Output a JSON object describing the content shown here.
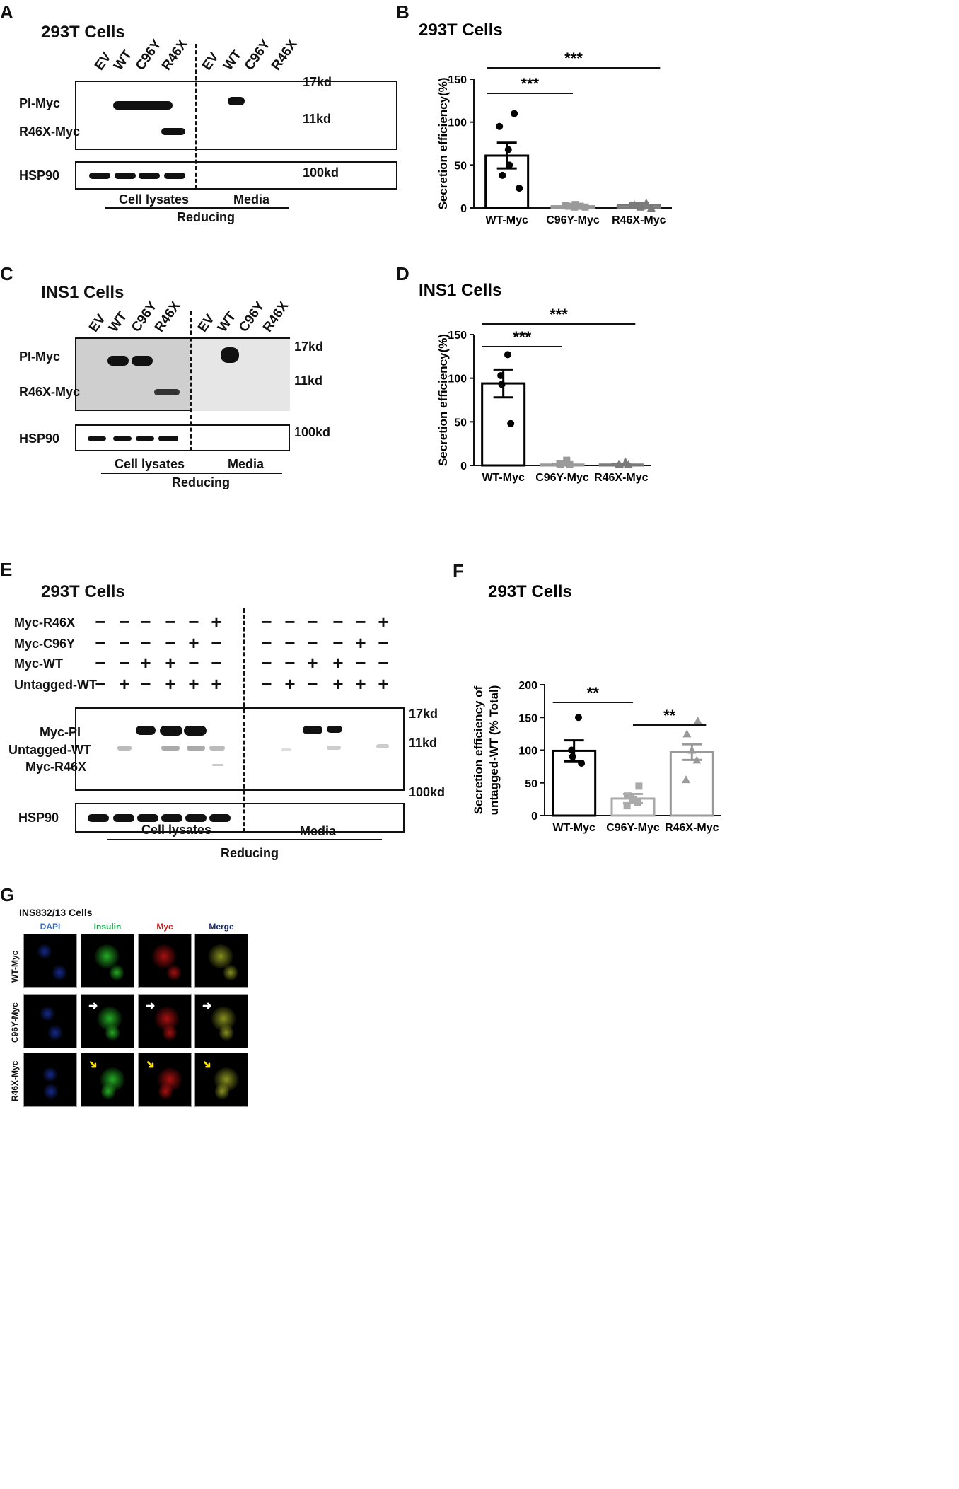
{
  "panels": {
    "A": {
      "letter": "A",
      "title": "293T Cells",
      "lanes": [
        "EV",
        "WT",
        "C96Y",
        "R46X",
        "EV",
        "WT",
        "C96Y",
        "R46X"
      ],
      "rows": [
        "PI-Myc",
        "R46X-Myc",
        "HSP90"
      ],
      "markers": [
        "17kd",
        "11kd",
        "100kd"
      ],
      "groups": [
        "Cell lysates",
        "Media"
      ],
      "condition": "Reducing"
    },
    "B": {
      "letter": "B"
    },
    "C": {
      "letter": "C",
      "title": "INS1 Cells",
      "lanes": [
        "EV",
        "WT",
        "C96Y",
        "R46X",
        "EV",
        "WT",
        "C96Y",
        "R46X"
      ],
      "rows": [
        "PI-Myc",
        "R46X-Myc",
        "HSP90"
      ],
      "markers": [
        "17kd",
        "11kd",
        "100kd"
      ],
      "groups": [
        "Cell lysates",
        "Media"
      ],
      "condition": "Reducing"
    },
    "D": {
      "letter": "D"
    },
    "E": {
      "letter": "E",
      "title": "293T Cells",
      "conditions": [
        {
          "name": "Myc-R46X",
          "signs": [
            "−",
            "−",
            "−",
            "−",
            "−",
            "+",
            "−",
            "−",
            "−",
            "−",
            "−",
            "+"
          ]
        },
        {
          "name": "Myc-C96Y",
          "signs": [
            "−",
            "−",
            "−",
            "−",
            "+",
            "−",
            "−",
            "−",
            "−",
            "−",
            "+",
            "−"
          ]
        },
        {
          "name": "Myc-WT",
          "signs": [
            "−",
            "−",
            "+",
            "+",
            "−",
            "−",
            "−",
            "−",
            "+",
            "+",
            "−",
            "−"
          ]
        },
        {
          "name": "Untagged-WT",
          "signs": [
            "−",
            "+",
            "−",
            "+",
            "+",
            "+",
            "−",
            "+",
            "−",
            "+",
            "+",
            "+"
          ]
        }
      ],
      "rows": [
        "Myc-PI",
        "Untagged-WT",
        "Myc-R46X",
        "HSP90"
      ],
      "markers": [
        "17kd",
        "11kd",
        "100kd"
      ],
      "groups": [
        "Cell lysates",
        "Media"
      ],
      "condition": "Reducing"
    },
    "F": {
      "letter": "F"
    },
    "G": {
      "letter": "G",
      "title": "INS832/13 Cells",
      "channels": [
        "DAPI",
        "Insulin",
        "Myc",
        "Merge"
      ],
      "channel_colors": [
        "#3b6cc9",
        "#1aa34a",
        "#d11c1c",
        "#1a2a6c"
      ],
      "rows": [
        "WT-Myc",
        "C96Y-Myc",
        "R46X-Myc"
      ]
    }
  },
  "chart_data": [
    {
      "id": "B",
      "type": "bar",
      "title": "293T Cells",
      "ylabel": "Secretion efficiency(%)",
      "xlabel": "",
      "ylim": [
        0,
        150
      ],
      "yticks": [
        0,
        50,
        100,
        150
      ],
      "categories": [
        "WT-Myc",
        "C96Y-Myc",
        "R46X-Myc"
      ],
      "values": [
        61,
        2,
        3
      ],
      "sem": [
        15,
        1,
        3
      ],
      "points": [
        [
          110,
          95,
          68,
          50,
          38,
          23
        ],
        [
          2,
          3,
          1,
          4,
          2,
          1
        ],
        [
          6,
          3,
          1,
          2,
          4,
          0
        ]
      ],
      "markers": [
        "circle",
        "square",
        "triangle"
      ],
      "significance": [
        {
          "from": 0,
          "to": 1,
          "label": "***"
        },
        {
          "from": 0,
          "to": 2,
          "label": "***"
        }
      ]
    },
    {
      "id": "D",
      "type": "bar",
      "title": "INS1 Cells",
      "ylabel": "Secretion efficiency(%)",
      "xlabel": "",
      "ylim": [
        0,
        150
      ],
      "yticks": [
        0,
        50,
        100,
        150
      ],
      "categories": [
        "WT-Myc",
        "C96Y-Myc",
        "R46X-Myc"
      ],
      "values": [
        94,
        1,
        1
      ],
      "sem": [
        16,
        1,
        1
      ],
      "points": [
        [
          127,
          103,
          93,
          48
        ],
        [
          6,
          2,
          1,
          1
        ],
        [
          4,
          1,
          1,
          1
        ]
      ],
      "markers": [
        "circle",
        "square",
        "triangle"
      ],
      "significance": [
        {
          "from": 0,
          "to": 1,
          "label": "***"
        },
        {
          "from": 0,
          "to": 2,
          "label": "***"
        }
      ]
    },
    {
      "id": "F",
      "type": "bar",
      "title": "293T Cells",
      "ylabel": "Secretion efficiency of untagged-WT (% Total)",
      "xlabel": "",
      "ylim": [
        0,
        200
      ],
      "yticks": [
        0,
        50,
        100,
        150,
        200
      ],
      "categories": [
        "WT-Myc",
        "C96Y-Myc",
        "R46X-Myc"
      ],
      "values": [
        99,
        26,
        97
      ],
      "sem": [
        16,
        7,
        12
      ],
      "points": [
        [
          150,
          100,
          90,
          80
        ],
        [
          45,
          30,
          25,
          20,
          15
        ],
        [
          145,
          125,
          100,
          85,
          55
        ]
      ],
      "markers": [
        "circle",
        "square",
        "triangle"
      ],
      "significance": [
        {
          "from": 0,
          "to": 1,
          "label": "**"
        },
        {
          "from": 1,
          "to": 2,
          "label": "**"
        }
      ]
    }
  ]
}
